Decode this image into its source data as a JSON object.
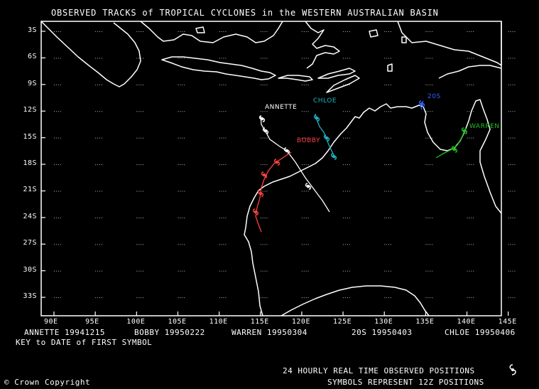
{
  "title": "OBSERVED TRACKS of TROPICAL CYCLONES in the WESTERN AUSTRALIAN BASIN",
  "lat_labels": [
    "3S",
    "6S",
    "9S",
    "12S",
    "15S",
    "18S",
    "21S",
    "24S",
    "27S",
    "30S",
    "33S"
  ],
  "lon_labels": [
    "90E",
    "95E",
    "100E",
    "105E",
    "110E",
    "115E",
    "120E",
    "125E",
    "130E",
    "135E",
    "140E",
    "145E"
  ],
  "storms": [
    {
      "id": "annette",
      "name": "ANNETTE",
      "color": "#ffffff",
      "legend": "ANNETTE 19941215"
    },
    {
      "id": "bobby",
      "name": "BOBBY",
      "color": "#ff4040",
      "legend": "BOBBY 19950222"
    },
    {
      "id": "warren",
      "name": "WARREN",
      "color": "#20c020",
      "legend": "WARREN 19950304"
    },
    {
      "id": "20s",
      "name": "20S",
      "color": "#3060ff",
      "legend": "20S 19950403"
    },
    {
      "id": "chloe",
      "name": "CHLOE",
      "color": "#20b0c0",
      "legend": "CHLOE 19950406"
    }
  ],
  "key_text": "KEY to DATE of FIRST SYMBOL",
  "copyright": "© Crown Copyright",
  "footer_line1": "24 HOURLY REAL TIME OBSERVED POSITIONS",
  "footer_line2": "SYMBOLS REPRESENT 12Z POSITIONS"
}
